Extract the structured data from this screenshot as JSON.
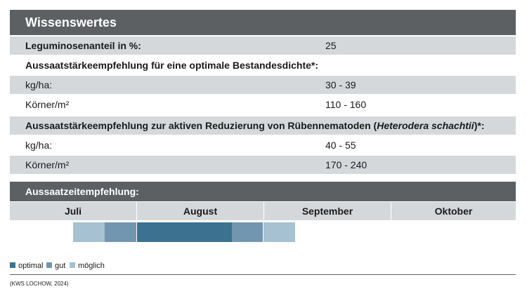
{
  "title": "Wissenswertes",
  "rows": [
    {
      "label": "Leguminosenanteil in %:",
      "value": "25"
    },
    {
      "label": "Aussaatstärkeempfehlung für eine optimale Bestandesdichte*:"
    },
    {
      "label": "kg/ha:",
      "value": "30 - 39"
    },
    {
      "label": "Körner/m²",
      "value": "110 - 160"
    },
    {
      "label_pre": "Aussaatstärkeempfehlung zur aktiven Reduzierung von Rübennematoden (",
      "label_italic": "Heterodera schachtii",
      "label_post": ")*:"
    },
    {
      "label": "kg/ha:",
      "value": "40 - 55"
    },
    {
      "label": "Körner/m²",
      "value": "170 - 240"
    }
  ],
  "timeline": {
    "title": "Aussaatzeitempfehlung:",
    "months": [
      "Juli",
      "August",
      "September",
      "Oktober"
    ],
    "periods": [
      {
        "start_month": 0,
        "start": 0.5,
        "end": 0.75,
        "level": "möglich"
      },
      {
        "start_month": 0,
        "start": 0.75,
        "end": 1.0,
        "level": "gut"
      },
      {
        "start_month": 1,
        "start": 0.0,
        "end": 0.5,
        "level": "optimal"
      },
      {
        "start_month": 1,
        "start": 0.5,
        "end": 0.75,
        "level": "optimal"
      },
      {
        "start_month": 1,
        "start": 0.75,
        "end": 1.0,
        "level": "gut"
      },
      {
        "start_month": 2,
        "start": 0.0,
        "end": 0.25,
        "level": "möglich"
      }
    ]
  },
  "legend": [
    {
      "label": "optimal",
      "color": "#3c7190"
    },
    {
      "label": "gut",
      "color": "#7396b0"
    },
    {
      "label": "möglich",
      "color": "#a6c1d1"
    }
  ],
  "source": "(KWS LOCHOW, 2024)"
}
